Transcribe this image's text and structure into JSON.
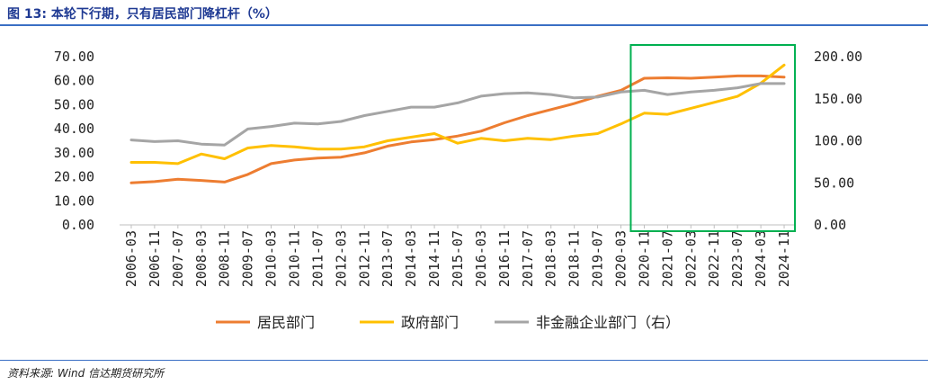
{
  "figure": {
    "title": "图 13:  本轮下行期，只有居民部门降杠杆（%）",
    "source": "资料来源:    Wind  信达期货研究所"
  },
  "chart_data": {
    "type": "line",
    "left_axis": {
      "ylim": [
        0,
        70
      ],
      "ticks": [
        "0.00",
        "10.00",
        "20.00",
        "30.00",
        "40.00",
        "50.00",
        "60.00",
        "70.00"
      ]
    },
    "right_axis": {
      "ylim": [
        0,
        200
      ],
      "ticks": [
        "0.00",
        "50.00",
        "100.00",
        "150.00",
        "200.00"
      ]
    },
    "x_labels": [
      "2006-03",
      "2006-11",
      "2007-07",
      "2008-03",
      "2008-11",
      "2009-07",
      "2010-03",
      "2010-11",
      "2011-07",
      "2012-03",
      "2012-11",
      "2013-07",
      "2014-03",
      "2014-11",
      "2015-07",
      "2016-03",
      "2016-11",
      "2017-07",
      "2018-03",
      "2018-11",
      "2019-07",
      "2020-03",
      "2020-11",
      "2021-07",
      "2022-03",
      "2022-11",
      "2023-07",
      "2024-03",
      "2024-11"
    ],
    "series": [
      {
        "name": "居民部门",
        "axis": "left",
        "color": "#ed7d31",
        "values": [
          17.5,
          18.0,
          19.0,
          18.5,
          17.8,
          21.0,
          25.5,
          27.0,
          27.8,
          28.2,
          30.0,
          32.8,
          34.5,
          35.5,
          37.0,
          39.0,
          42.5,
          45.5,
          48.0,
          50.5,
          53.5,
          56.0,
          61.0,
          61.2,
          61.0,
          61.5,
          62.0,
          62.0,
          61.5
        ]
      },
      {
        "name": "政府部门",
        "axis": "left",
        "color": "#ffc000",
        "values": [
          26.0,
          26.0,
          25.5,
          29.5,
          27.5,
          32.0,
          33.0,
          32.5,
          31.5,
          31.5,
          32.5,
          35.0,
          36.5,
          38.0,
          34.0,
          36.0,
          35.0,
          36.0,
          35.5,
          37.0,
          38.0,
          42.0,
          46.5,
          46.0,
          48.5,
          51.0,
          53.5,
          59.0,
          66.5
        ]
      },
      {
        "name": "非金融企业部门（右）",
        "axis": "right",
        "color": "#a5a5a5",
        "values": [
          101,
          99,
          100,
          96,
          95,
          114,
          117,
          121,
          120,
          123,
          130,
          135,
          140,
          140,
          145,
          153,
          156,
          157,
          155,
          151,
          152,
          158,
          160,
          155,
          158,
          160,
          163,
          168,
          168
        ]
      }
    ],
    "highlight": {
      "from": "2020-11",
      "to": "2024-11",
      "color": "#00b050"
    },
    "legend_position": "bottom"
  }
}
